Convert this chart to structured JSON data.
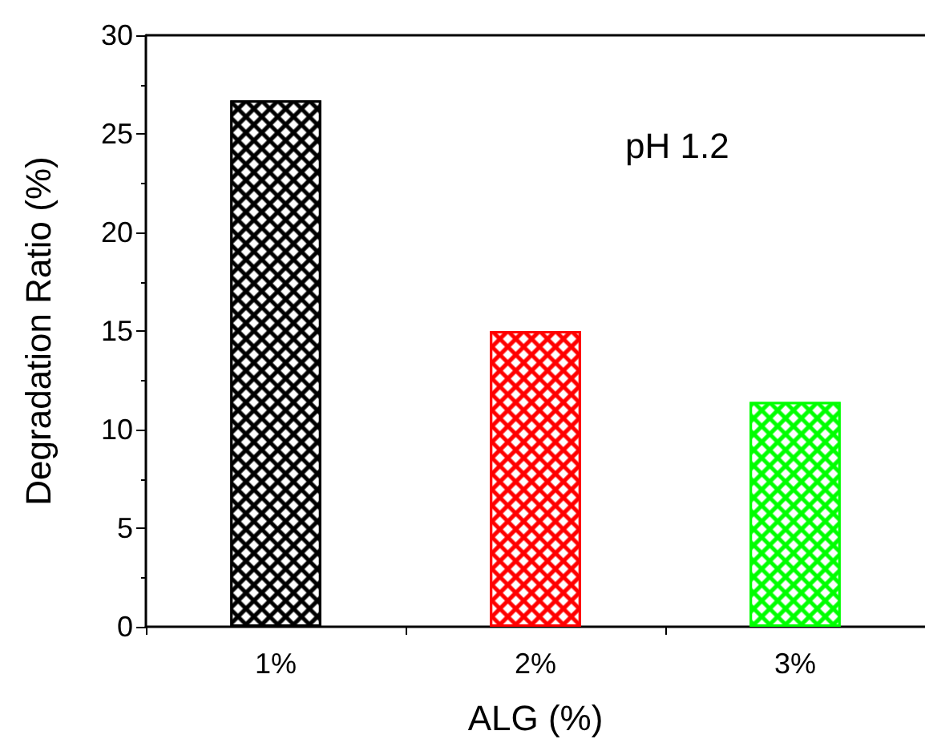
{
  "chart_data": {
    "type": "bar",
    "xlabel": "ALG (%)",
    "ylabel": "Degradation Ratio (%)",
    "categories": [
      "1%",
      "2%",
      "3%"
    ],
    "values": [
      26.7,
      15.0,
      11.4
    ],
    "colors": [
      "#000000",
      "#ff0000",
      "#00ff00"
    ],
    "ylim": [
      0,
      30
    ],
    "yticks": [
      0,
      5,
      10,
      15,
      20,
      25,
      30
    ],
    "annotations": [
      "pH 1.2"
    ]
  }
}
